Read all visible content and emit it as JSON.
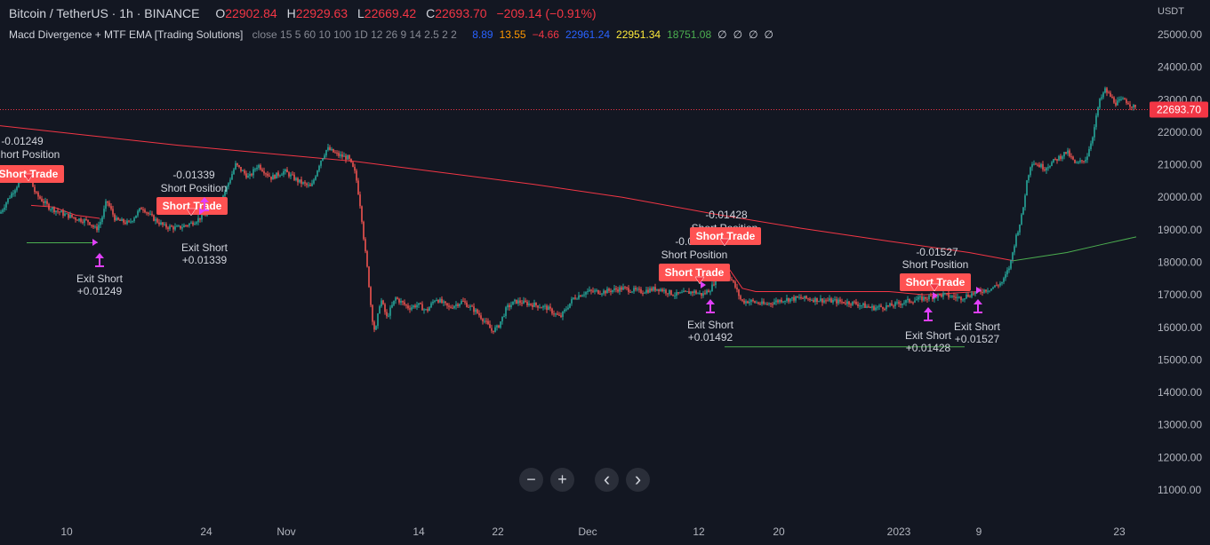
{
  "header": {
    "symbol": "Bitcoin / TetherUS · 1h · BINANCE",
    "o_label": "O",
    "o_value": "22902.84",
    "h_label": "H",
    "h_value": "22929.63",
    "l_label": "L",
    "l_value": "22669.42",
    "c_label": "C",
    "c_value": "22693.70",
    "change": "−209.14 (−0.91%)"
  },
  "indicator": {
    "name": "Macd Divergence + MTF EMA [Trading Solutions]",
    "params": "close 15 5 60 10 100 1D 12 26 9 14 2.5 2 2",
    "values": [
      {
        "text": "8.89",
        "color": "#2962ff"
      },
      {
        "text": "13.55",
        "color": "#ff9800"
      },
      {
        "text": "−4.66",
        "color": "#f23645"
      },
      {
        "text": "22961.24",
        "color": "#2962ff"
      },
      {
        "text": "22951.34",
        "color": "#ffeb3b"
      },
      {
        "text": "18751.08",
        "color": "#4caf50"
      },
      {
        "text": "∅",
        "color": "#d1d4dc"
      },
      {
        "text": "∅",
        "color": "#d1d4dc"
      },
      {
        "text": "∅",
        "color": "#d1d4dc"
      },
      {
        "text": "∅",
        "color": "#d1d4dc"
      }
    ]
  },
  "colors": {
    "background": "#131722",
    "up": "#26a69a",
    "down": "#ef5350",
    "ema_red": "#f23645",
    "ema_green": "#4caf50",
    "signal": "#e040fb",
    "label_bg": "#ff5252"
  },
  "chart_data": {
    "type": "line",
    "title": "",
    "currency": "USDT",
    "ylim": [
      10500,
      25800
    ],
    "x_ticks": [
      "10",
      "24",
      "Nov",
      "14",
      "22",
      "Dec",
      "12",
      "20",
      "2023",
      "9",
      "23"
    ],
    "y_ticks": [
      "25000.00",
      "24000.00",
      "23000.00",
      "22000.00",
      "21000.00",
      "20000.00",
      "19000.00",
      "18000.00",
      "17000.00",
      "16000.00",
      "15000.00",
      "14000.00",
      "13000.00",
      "12000.00",
      "11000.00"
    ],
    "last_price": "22693.70",
    "series": [
      {
        "type": "price",
        "points": [
          [
            0,
            19500
          ],
          [
            8,
            19900
          ],
          [
            20,
            20400
          ],
          [
            32,
            20700
          ],
          [
            40,
            20100
          ],
          [
            55,
            19700
          ],
          [
            70,
            19500
          ],
          [
            85,
            19350
          ],
          [
            100,
            19250
          ],
          [
            108,
            19000
          ],
          [
            114,
            19300
          ],
          [
            120,
            19900
          ],
          [
            130,
            19300
          ],
          [
            145,
            19200
          ],
          [
            160,
            19700
          ],
          [
            170,
            19400
          ],
          [
            185,
            19100
          ],
          [
            200,
            19050
          ],
          [
            215,
            19200
          ],
          [
            230,
            19450
          ],
          [
            245,
            19700
          ],
          [
            255,
            20300
          ],
          [
            265,
            21000
          ],
          [
            280,
            20600
          ],
          [
            290,
            21000
          ],
          [
            305,
            20600
          ],
          [
            320,
            20800
          ],
          [
            335,
            20500
          ],
          [
            350,
            20300
          ],
          [
            360,
            21100
          ],
          [
            368,
            21500
          ],
          [
            380,
            21300
          ],
          [
            392,
            21200
          ],
          [
            400,
            20700
          ],
          [
            406,
            19600
          ],
          [
            410,
            18500
          ],
          [
            414,
            17600
          ],
          [
            418,
            16400
          ],
          [
            422,
            15800
          ],
          [
            428,
            16900
          ],
          [
            435,
            16300
          ],
          [
            445,
            16900
          ],
          [
            460,
            16600
          ],
          [
            470,
            16700
          ],
          [
            480,
            16500
          ],
          [
            490,
            16900
          ],
          [
            505,
            16600
          ],
          [
            520,
            16800
          ],
          [
            535,
            16500
          ],
          [
            545,
            16200
          ],
          [
            553,
            15900
          ],
          [
            560,
            16000
          ],
          [
            570,
            16600
          ],
          [
            580,
            16800
          ],
          [
            600,
            16700
          ],
          [
            615,
            16600
          ],
          [
            630,
            16300
          ],
          [
            645,
            16900
          ],
          [
            660,
            17100
          ],
          [
            680,
            17100
          ],
          [
            700,
            17200
          ],
          [
            720,
            17100
          ],
          [
            740,
            17200
          ],
          [
            760,
            17000
          ],
          [
            780,
            17100
          ],
          [
            790,
            17000
          ],
          [
            800,
            17200
          ],
          [
            810,
            17800
          ],
          [
            818,
            17700
          ],
          [
            826,
            17300
          ],
          [
            834,
            16800
          ],
          [
            845,
            16800
          ],
          [
            860,
            16700
          ],
          [
            880,
            16850
          ],
          [
            900,
            16900
          ],
          [
            920,
            16850
          ],
          [
            940,
            16800
          ],
          [
            960,
            16750
          ],
          [
            980,
            16600
          ],
          [
            1000,
            16650
          ],
          [
            1020,
            16800
          ],
          [
            1040,
            16900
          ],
          [
            1060,
            17000
          ],
          [
            1080,
            16900
          ],
          [
            1100,
            17100
          ],
          [
            1115,
            17200
          ],
          [
            1128,
            17400
          ],
          [
            1136,
            17900
          ],
          [
            1142,
            18700
          ],
          [
            1150,
            19500
          ],
          [
            1155,
            20500
          ],
          [
            1160,
            21100
          ],
          [
            1175,
            20900
          ],
          [
            1190,
            21200
          ],
          [
            1200,
            21400
          ],
          [
            1210,
            21000
          ],
          [
            1222,
            21200
          ],
          [
            1230,
            22000
          ],
          [
            1236,
            22900
          ],
          [
            1243,
            23300
          ],
          [
            1255,
            22900
          ],
          [
            1265,
            23000
          ],
          [
            1278,
            22700
          ]
        ]
      },
      {
        "type": "ema",
        "name": "",
        "color": "#f23645",
        "points": [
          [
            0,
            22200
          ],
          [
            100,
            21900
          ],
          [
            200,
            21600
          ],
          [
            300,
            21350
          ],
          [
            400,
            21100
          ],
          [
            500,
            20750
          ],
          [
            600,
            20400
          ],
          [
            700,
            20000
          ],
          [
            800,
            19500
          ],
          [
            900,
            19050
          ],
          [
            1000,
            18650
          ],
          [
            1090,
            18300
          ],
          [
            1140,
            18050
          ]
        ]
      },
      {
        "type": "ema",
        "name": "",
        "color": "#4caf50",
        "points": [
          [
            1140,
            18050
          ],
          [
            1200,
            18300
          ],
          [
            1240,
            18550
          ],
          [
            1278,
            18780
          ]
        ]
      }
    ],
    "annotations": [
      {
        "pnl": "-0.01249",
        "title": "Short Position",
        "label": "Short Trade",
        "exit": "Exit Short",
        "exit_pnl": "+0.01249"
      },
      {
        "pnl": "-0.01339",
        "title": "Short Position",
        "label": "Short Trade",
        "exit": "Exit Short",
        "exit_pnl": "+0.01339"
      },
      {
        "pnl": "-0.01492",
        "title": "Short Position",
        "label": "Short Trade",
        "exit": "Exit Short",
        "exit_pnl": "+0.01492"
      },
      {
        "pnl": "-0.01428",
        "title": "Short Position",
        "label": "Short Trade",
        "exit": "Exit Short",
        "exit_pnl": "+0.01428"
      },
      {
        "pnl": "-0.01527",
        "title": "Short Position",
        "label": "Short Trade",
        "exit": "Exit Short",
        "exit_pnl": "+0.01527"
      }
    ]
  },
  "nav": {
    "minus": "−",
    "plus": "+",
    "prev": "‹",
    "next": "›"
  }
}
